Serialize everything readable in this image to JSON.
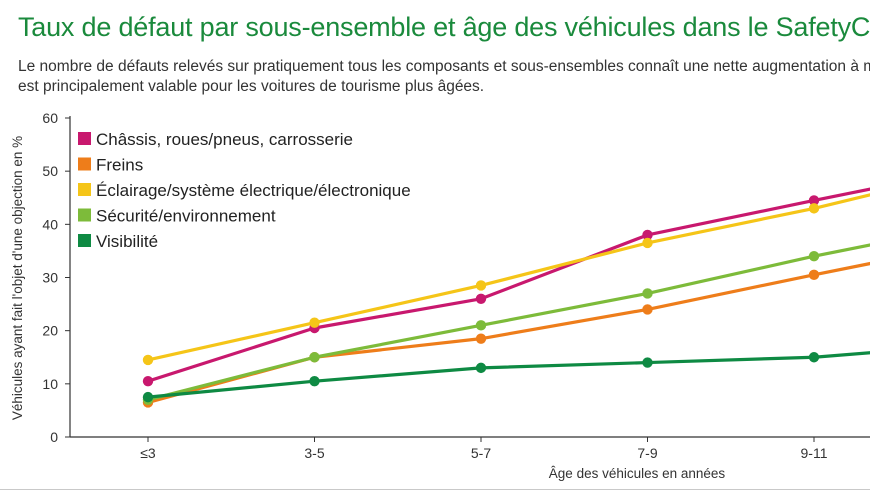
{
  "header": {
    "title": "Taux de défaut par sous-ensemble et âge des véhicules dans le SafetyCheck",
    "subtitle_line1": "Le nombre de défauts relevés sur pratiquement tous les composants et sous-ensembles connaît une nette augmentation à mesure q",
    "subtitle_line2": "est principalement valable pour les voitures de tourisme plus âgées."
  },
  "colors": {
    "title": "#1a8a3c",
    "axis": "#333333"
  },
  "chart_data": {
    "type": "line",
    "title": "Taux de défaut par sous-ensemble et âge des véhicules dans le SafetyCheck",
    "xlabel": "Âge des véhicules en années",
    "ylabel": "Véhicules ayant fait l'objet d'une objection en %",
    "categories": [
      "≤3",
      "3-5",
      "5-7",
      "7-9",
      "9-11"
    ],
    "yticks": [
      0,
      10,
      20,
      30,
      40,
      50,
      60
    ],
    "ylim": [
      0,
      60
    ],
    "grid": false,
    "legend_position": "top-left",
    "series": [
      {
        "name": "Châssis, roues/pneus, carrosserie",
        "color": "#c8186e",
        "values": [
          10.5,
          20.5,
          26,
          38,
          44.5
        ],
        "edge_value": 47
      },
      {
        "name": "Freins",
        "color": "#ee7d1a",
        "values": [
          6.5,
          15,
          18.5,
          24,
          30.5
        ],
        "edge_value": 33
      },
      {
        "name": "Éclairage/système électrique/électronique",
        "color": "#f5c518",
        "values": [
          14.5,
          21.5,
          28.5,
          36.5,
          43
        ],
        "edge_value": 46
      },
      {
        "name": "Sécurité/environnement",
        "color": "#7dbb3a",
        "values": [
          7,
          15,
          21,
          27,
          34
        ],
        "edge_value": 36.5
      },
      {
        "name": "Visibilité",
        "color": "#0e8a43",
        "values": [
          7.5,
          10.5,
          13,
          14,
          15
        ],
        "edge_value": 16
      }
    ]
  }
}
